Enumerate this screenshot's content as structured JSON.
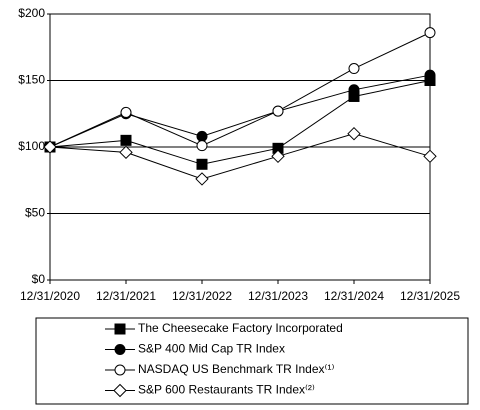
{
  "chart_data": {
    "type": "line",
    "categories": [
      "12/31/2020",
      "12/31/2021",
      "12/31/2022",
      "12/31/2023",
      "12/31/2024",
      "12/31/2025"
    ],
    "series": [
      {
        "name": "The Cheesecake Factory Incorporated",
        "color": "#000000",
        "marker": "square",
        "values": [
          100,
          105,
          87,
          99,
          138,
          150
        ]
      },
      {
        "name": "S&P 400 Mid Cap TR Index",
        "color": "#000000",
        "marker": "circle",
        "values": [
          100,
          125,
          108,
          127,
          143,
          154
        ]
      },
      {
        "name": "NASDAQ US Benchmark TR Index⁽¹⁾",
        "color": "#000000",
        "marker": "circle-open",
        "values": [
          100,
          126,
          101,
          127,
          159,
          186
        ]
      },
      {
        "name": "S&P 600 Restaurants TR Index⁽²⁾",
        "color": "#000000",
        "marker": "diamond-open",
        "values": [
          100,
          96,
          76,
          93,
          110,
          93
        ]
      }
    ],
    "ylim": [
      0,
      200
    ],
    "yticks": [
      {
        "value": 0,
        "label": "$0"
      },
      {
        "value": 50,
        "label": "$50"
      },
      {
        "value": 100,
        "label": "$100"
      },
      {
        "value": 150,
        "label": "$150"
      },
      {
        "value": 200,
        "label": "$200"
      }
    ],
    "grid": true
  }
}
